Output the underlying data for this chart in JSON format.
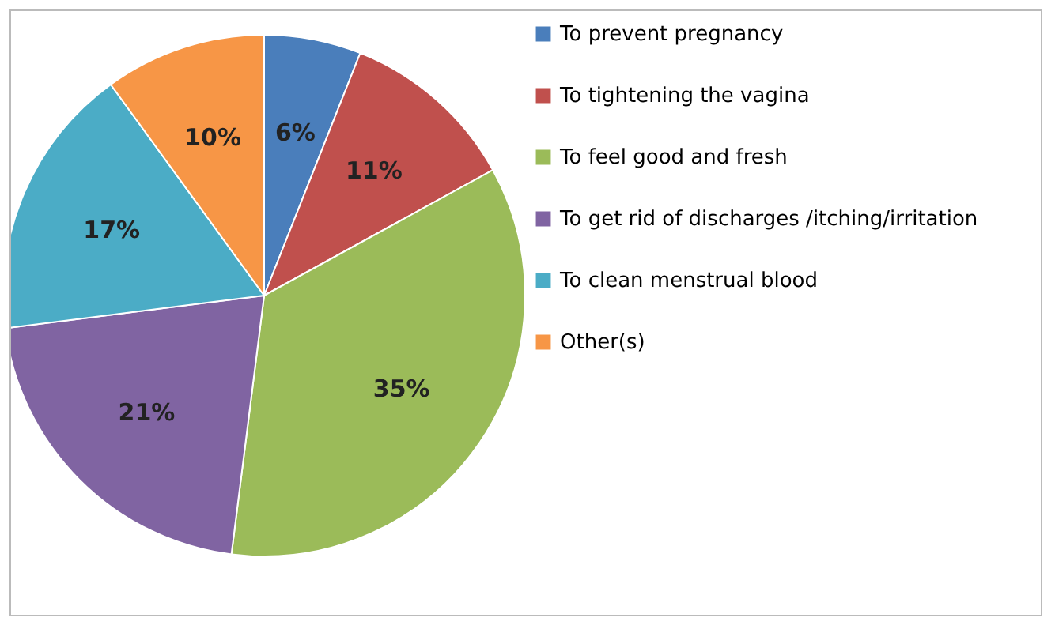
{
  "chart_data": {
    "type": "pie",
    "categories": [
      "To prevent pregnancy",
      "To tightening the vagina",
      "To feel good and fresh",
      "To get rid of discharges /itching/irritation",
      "To clean menstrual blood",
      "Other(s)"
    ],
    "values": [
      6,
      11,
      35,
      21,
      17,
      10
    ],
    "colors": [
      "#4a7ebb",
      "#c0504d",
      "#9bbb59",
      "#8064a2",
      "#4bacc6",
      "#f79646"
    ],
    "value_labels": [
      "6%",
      "11%",
      "35%",
      "21%",
      "17%",
      "10%"
    ],
    "legend": "right"
  }
}
